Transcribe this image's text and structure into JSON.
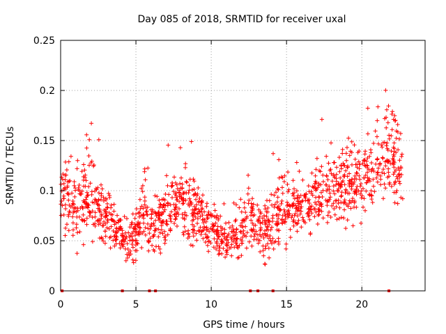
{
  "chart_data": {
    "type": "scatter",
    "title": "Day 085 of 2018, SRMTID for receiver uxal",
    "xlabel": "GPS time / hours",
    "ylabel": "SRMTID / TECUs",
    "xlim": [
      0,
      24.2
    ],
    "ylim": [
      0,
      0.25
    ],
    "xticks": [
      0,
      5,
      10,
      15,
      20
    ],
    "xtick_labels": [
      "0",
      "5",
      "10",
      "15",
      "20"
    ],
    "yticks": [
      0,
      0.05,
      0.1,
      0.15,
      0.2,
      0.25
    ],
    "ytick_labels": [
      "0",
      "0.05",
      "0.1",
      "0.15",
      "0.2",
      "0.25"
    ],
    "grid": true,
    "marker": "+",
    "color": "#ff0000",
    "zero_markers_x": [
      0.1,
      4.1,
      5.9,
      6.3,
      12.6,
      13.1,
      14.1,
      21.8
    ],
    "series": [
      {
        "name": "SRMTID",
        "envelope_hours": [
          0,
          0.5,
          1,
          1.5,
          2,
          2.5,
          3,
          3.5,
          4,
          4.5,
          5,
          5.5,
          6,
          6.5,
          7,
          7.5,
          8,
          8.5,
          9,
          9.5,
          10,
          10.5,
          11,
          11.5,
          12,
          12.5,
          13,
          13.5,
          14,
          14.5,
          15,
          15.5,
          16,
          16.5,
          17,
          17.5,
          18,
          18.5,
          19,
          19.5,
          20,
          20.5,
          21,
          21.5,
          22,
          22.5,
          23
        ],
        "envelope_mean": [
          0.09,
          0.095,
          0.085,
          0.09,
          0.1,
          0.09,
          0.07,
          0.065,
          0.06,
          0.045,
          0.06,
          0.075,
          0.065,
          0.07,
          0.075,
          0.085,
          0.095,
          0.08,
          0.075,
          0.07,
          0.065,
          0.055,
          0.05,
          0.05,
          0.06,
          0.07,
          0.065,
          0.06,
          0.065,
          0.075,
          0.085,
          0.08,
          0.08,
          0.085,
          0.095,
          0.1,
          0.1,
          0.105,
          0.11,
          0.105,
          0.11,
          0.12,
          0.125,
          0.13,
          0.135,
          0.13,
          0.115
        ],
        "envelope_spread": [
          0.03,
          0.04,
          0.035,
          0.035,
          0.04,
          0.03,
          0.025,
          0.02,
          0.02,
          0.02,
          0.025,
          0.025,
          0.025,
          0.025,
          0.025,
          0.03,
          0.03,
          0.03,
          0.03,
          0.025,
          0.025,
          0.02,
          0.02,
          0.02,
          0.025,
          0.03,
          0.025,
          0.025,
          0.025,
          0.03,
          0.03,
          0.025,
          0.025,
          0.025,
          0.03,
          0.03,
          0.03,
          0.03,
          0.035,
          0.035,
          0.035,
          0.035,
          0.035,
          0.04,
          0.04,
          0.04,
          0.035
        ],
        "x_start": 0,
        "x_end": 22.8,
        "n_points": 1500
      }
    ]
  }
}
